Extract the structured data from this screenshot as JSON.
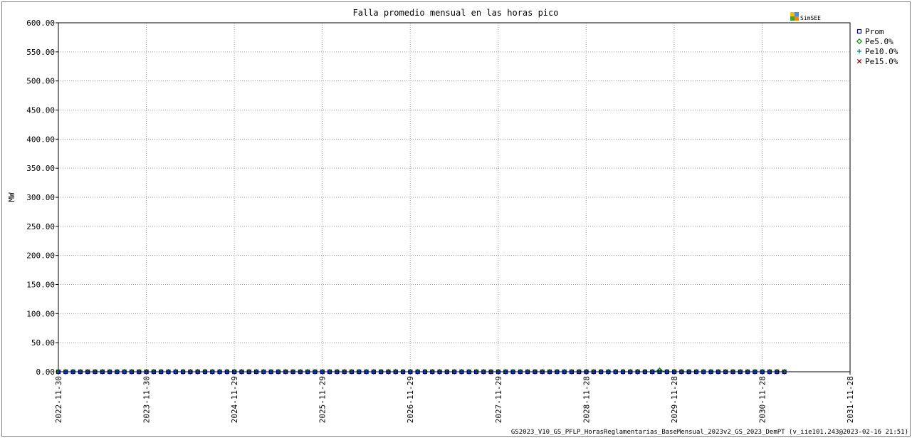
{
  "chart_data": {
    "type": "line",
    "title": "Falla promedio mensual en las horas pico",
    "ylabel": "MW",
    "xlabel": "",
    "ylim": [
      0,
      600
    ],
    "yticks": [
      0,
      50,
      100,
      150,
      200,
      250,
      300,
      350,
      400,
      450,
      500,
      550,
      600
    ],
    "ytick_labels": [
      "0.00",
      "50.00",
      "100.00",
      "150.00",
      "200.00",
      "250.00",
      "300.00",
      "350.00",
      "400.00",
      "450.00",
      "500.00",
      "550.00",
      "600.00"
    ],
    "xlim": [
      "2022-11-30",
      "2031-11-28"
    ],
    "xticks": [
      "2022-11-30",
      "2023-11-30",
      "2024-11-29",
      "2025-11-29",
      "2026-11-29",
      "2027-11-29",
      "2028-11-28",
      "2029-11-28",
      "2030-11-28",
      "2031-11-28"
    ],
    "grid": true,
    "legend_position": "top-right",
    "x_start": "2022-11-30",
    "x_end": "2031-02-28",
    "n_points": 100,
    "series": [
      {
        "name": "Prom",
        "marker": "square",
        "color": "#000080",
        "values": {
          "default": 0,
          "points": {}
        }
      },
      {
        "name": "Pe5.0%",
        "marker": "diamond",
        "color": "#008000",
        "values": {
          "default": 0,
          "points": {
            "82": 2.5
          }
        }
      },
      {
        "name": "Pe10.0%",
        "marker": "plus",
        "color": "#008080",
        "values": {
          "default": 0,
          "points": {}
        }
      },
      {
        "name": "Pe15.0%",
        "marker": "cross",
        "color": "#800000",
        "values": {
          "default": 0,
          "points": {}
        }
      }
    ],
    "footer": "GS2023_V10_GS_PFLP_HorasReglamentarias_BaseMensual_2023v2_GS_2023_DemPT (v_iie101.243@2023-02-16 21:51)"
  },
  "logo": {
    "text": "SimSEE",
    "colors": [
      "#f5c400",
      "#4a90d9",
      "#3aa63a",
      "#f08c00"
    ]
  }
}
